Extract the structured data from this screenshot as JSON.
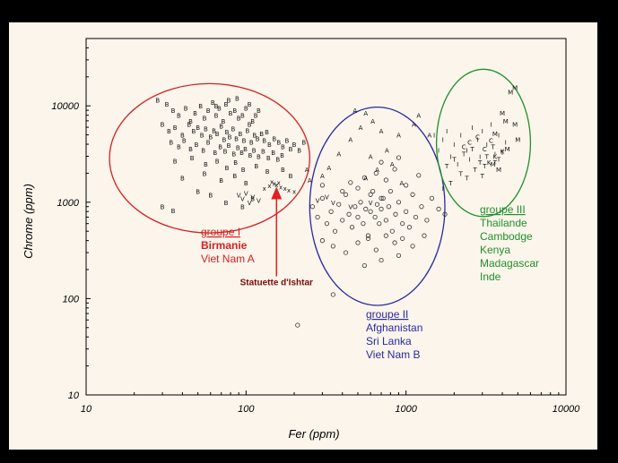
{
  "chart_data": {
    "type": "scatter",
    "xlabel": "Fer (ppm)",
    "ylabel": "Chrome (ppm)",
    "x_scale": "log",
    "y_scale": "log",
    "xlim": [
      10,
      10000
    ],
    "ylim": [
      10,
      50000
    ],
    "x_ticks": [
      "10",
      "100",
      "1000",
      "10000"
    ],
    "y_ticks": [
      "10",
      "100",
      "1000",
      "10000"
    ],
    "grid": false,
    "groups": [
      {
        "title": "groupe I",
        "members": [
          "Birmanie",
          "Viet Nam A"
        ],
        "color": "#d42020",
        "marker": "B",
        "ellipse": {
          "x_center": 52,
          "y_center": 2700,
          "x_min": 14,
          "x_max": 250,
          "y_min": 480,
          "y_max": 17000
        }
      },
      {
        "title": "groupe II",
        "members": [
          "Afghanistan",
          "Sri Lanka",
          "Viet Nam B"
        ],
        "color": "#2a2aa0",
        "marker": "o",
        "ellipse": {
          "x_center": 640,
          "y_center": 700,
          "x_min": 250,
          "x_max": 1750,
          "y_min": 85,
          "y_max": 9700
        }
      },
      {
        "title": "groupe III",
        "members": [
          "Thailande",
          "Cambodge",
          "Kenya",
          "Madagascar",
          "Inde"
        ],
        "color": "#20902a",
        "marker": "T",
        "ellipse": {
          "x_center": 3000,
          "y_center": 3300,
          "x_min": 1550,
          "x_max": 6000,
          "y_min": 710,
          "y_max": 24000
        }
      }
    ],
    "annotation": {
      "text": "Statuette d'Ishtar",
      "color": "#7a0a0a",
      "arrow_to": {
        "x": 155,
        "y": 1450
      },
      "arrow_from": {
        "x": 155,
        "y": 170
      }
    },
    "series": [
      {
        "marker": "B",
        "points": [
          [
            28,
            11500
          ],
          [
            32,
            10500
          ],
          [
            35,
            9000
          ],
          [
            38,
            8000
          ],
          [
            42,
            9500
          ],
          [
            45,
            7000
          ],
          [
            48,
            8500
          ],
          [
            52,
            10000
          ],
          [
            55,
            7500
          ],
          [
            58,
            9000
          ],
          [
            62,
            11000
          ],
          [
            65,
            8000
          ],
          [
            68,
            9500
          ],
          [
            72,
            7000
          ],
          [
            75,
            10500
          ],
          [
            80,
            8500
          ],
          [
            85,
            9000
          ],
          [
            90,
            7500
          ],
          [
            95,
            8000
          ],
          [
            100,
            9500
          ],
          [
            105,
            6500
          ],
          [
            110,
            7000
          ],
          [
            115,
            8000
          ],
          [
            120,
            9000
          ],
          [
            30,
            6500
          ],
          [
            33,
            5500
          ],
          [
            36,
            6000
          ],
          [
            40,
            5000
          ],
          [
            44,
            6500
          ],
          [
            47,
            5500
          ],
          [
            50,
            6000
          ],
          [
            53,
            5000
          ],
          [
            56,
            5800
          ],
          [
            60,
            4800
          ],
          [
            63,
            5600
          ],
          [
            66,
            5200
          ],
          [
            70,
            6200
          ],
          [
            73,
            4500
          ],
          [
            76,
            5400
          ],
          [
            79,
            4800
          ],
          [
            83,
            5800
          ],
          [
            87,
            4600
          ],
          [
            92,
            5200
          ],
          [
            97,
            4400
          ],
          [
            102,
            5600
          ],
          [
            108,
            4200
          ],
          [
            113,
            5000
          ],
          [
            118,
            4600
          ],
          [
            125,
            5200
          ],
          [
            130,
            4400
          ],
          [
            135,
            5400
          ],
          [
            140,
            4000
          ],
          [
            150,
            4600
          ],
          [
            160,
            4200
          ],
          [
            170,
            3800
          ],
          [
            180,
            4400
          ],
          [
            190,
            3600
          ],
          [
            200,
            4000
          ],
          [
            215,
            3500
          ],
          [
            230,
            4200
          ],
          [
            34,
            4200
          ],
          [
            38,
            3800
          ],
          [
            41,
            4400
          ],
          [
            45,
            3600
          ],
          [
            49,
            4000
          ],
          [
            54,
            3500
          ],
          [
            58,
            4200
          ],
          [
            64,
            3300
          ],
          [
            69,
            3800
          ],
          [
            74,
            3400
          ],
          [
            78,
            3900
          ],
          [
            84,
            3200
          ],
          [
            89,
            3700
          ],
          [
            94,
            3300
          ],
          [
            99,
            3600
          ],
          [
            106,
            3100
          ],
          [
            112,
            3500
          ],
          [
            120,
            3000
          ],
          [
            128,
            3400
          ],
          [
            138,
            2900
          ],
          [
            148,
            3300
          ],
          [
            158,
            2800
          ],
          [
            168,
            3100
          ],
          [
            36,
            2700
          ],
          [
            46,
            2900
          ],
          [
            56,
            2500
          ],
          [
            66,
            2700
          ],
          [
            76,
            2300
          ],
          [
            86,
            2600
          ],
          [
            96,
            2200
          ],
          [
            116,
            2400
          ],
          [
            136,
            2100
          ],
          [
            40,
            1800
          ],
          [
            55,
            2000
          ],
          [
            70,
            1700
          ],
          [
            85,
            1900
          ],
          [
            100,
            1600
          ],
          [
            30,
            900
          ],
          [
            35,
            820
          ],
          [
            60,
            1200
          ],
          [
            75,
            1000
          ],
          [
            95,
            900
          ],
          [
            110,
            1100
          ],
          [
            50,
            1300
          ],
          [
            170,
            2200
          ],
          [
            190,
            1900
          ],
          [
            65,
            10000
          ],
          [
            78,
            11500
          ],
          [
            88,
            12000
          ],
          [
            105,
            10500
          ]
        ]
      },
      {
        "marker": "o",
        "points": [
          [
            260,
            900
          ],
          [
            280,
            700
          ],
          [
            300,
            1100
          ],
          [
            320,
            600
          ],
          [
            340,
            800
          ],
          [
            360,
            500
          ],
          [
            380,
            950
          ],
          [
            400,
            650
          ],
          [
            420,
            1200
          ],
          [
            440,
            750
          ],
          [
            460,
            550
          ],
          [
            480,
            900
          ],
          [
            500,
            700
          ],
          [
            520,
            1000
          ],
          [
            540,
            600
          ],
          [
            560,
            850
          ],
          [
            580,
            450
          ],
          [
            600,
            800
          ],
          [
            620,
            1300
          ],
          [
            640,
            700
          ],
          [
            660,
            950
          ],
          [
            680,
            600
          ],
          [
            700,
            850
          ],
          [
            720,
            1100
          ],
          [
            750,
            650
          ],
          [
            780,
            900
          ],
          [
            820,
            500
          ],
          [
            860,
            750
          ],
          [
            900,
            1000
          ],
          [
            950,
            600
          ],
          [
            1000,
            800
          ],
          [
            1050,
            550
          ],
          [
            1100,
            1200
          ],
          [
            1150,
            700
          ],
          [
            1250,
            900
          ],
          [
            1350,
            650
          ],
          [
            1450,
            1100
          ],
          [
            1600,
            850
          ],
          [
            1750,
            750
          ],
          [
            300,
            400
          ],
          [
            350,
            350
          ],
          [
            420,
            300
          ],
          [
            500,
            380
          ],
          [
            580,
            420
          ],
          [
            650,
            320
          ],
          [
            750,
            450
          ],
          [
            850,
            380
          ],
          [
            950,
            420
          ],
          [
            1100,
            350
          ],
          [
            1300,
            450
          ],
          [
            450,
            1600
          ],
          [
            550,
            1800
          ],
          [
            650,
            2000
          ],
          [
            750,
            1700
          ],
          [
            850,
            2200
          ],
          [
            1000,
            1500
          ],
          [
            1200,
            1900
          ],
          [
            700,
            2600
          ],
          [
            900,
            2900
          ],
          [
            550,
            220
          ],
          [
            700,
            250
          ],
          [
            900,
            280
          ],
          [
            350,
            110
          ],
          [
            210,
            53
          ],
          [
            400,
            1300
          ],
          [
            500,
            1400
          ],
          [
            600,
            1200
          ],
          [
            700,
            1100
          ],
          [
            800,
            1300
          ],
          [
            300,
            1500
          ]
        ]
      },
      {
        "marker": "A",
        "points": [
          [
            480,
            9000
          ],
          [
            560,
            8500
          ],
          [
            620,
            7000
          ],
          [
            700,
            5500
          ],
          [
            900,
            5000
          ],
          [
            450,
            4500
          ],
          [
            520,
            6000
          ],
          [
            760,
            3500
          ],
          [
            600,
            3000
          ],
          [
            820,
            2500
          ],
          [
            660,
            2200
          ],
          [
            560,
            1800
          ],
          [
            940,
            1600
          ],
          [
            1120,
            6500
          ],
          [
            1200,
            8000
          ],
          [
            1400,
            5000
          ],
          [
            240,
            2200
          ],
          [
            330,
            2300
          ],
          [
            380,
            3200
          ],
          [
            250,
            1700
          ],
          [
            300,
            1900
          ]
        ]
      },
      {
        "marker": "x",
        "points": [
          [
            140,
            1500
          ],
          [
            145,
            1650
          ],
          [
            150,
            1580
          ],
          [
            155,
            1520
          ],
          [
            160,
            1620
          ],
          [
            165,
            1450
          ],
          [
            175,
            1400
          ],
          [
            185,
            1350
          ],
          [
            200,
            1300
          ],
          [
            130,
            1400
          ]
        ]
      },
      {
        "marker": "V",
        "points": [
          [
            90,
            1200
          ],
          [
            95,
            1100
          ],
          [
            100,
            1250
          ],
          [
            105,
            1000
          ],
          [
            110,
            1150
          ],
          [
            120,
            1050
          ],
          [
            280,
            1050
          ],
          [
            320,
            1150
          ],
          [
            350,
            1000
          ],
          [
            450,
            900
          ],
          [
            600,
            1000
          ]
        ]
      },
      {
        "marker": "I",
        "points": [
          [
            1600,
            3500
          ],
          [
            1700,
            4500
          ],
          [
            1800,
            5500
          ],
          [
            1900,
            3000
          ],
          [
            2000,
            4000
          ],
          [
            2200,
            5000
          ],
          [
            2400,
            3500
          ],
          [
            2600,
            6000
          ],
          [
            2800,
            4500
          ],
          [
            3000,
            5500
          ],
          [
            3200,
            4000
          ],
          [
            3400,
            6500
          ],
          [
            3600,
            3200
          ],
          [
            3800,
            5000
          ],
          [
            2100,
            2500
          ],
          [
            2500,
            2800
          ],
          [
            2900,
            3000
          ],
          [
            1500,
            5000
          ],
          [
            1700,
            1400
          ],
          [
            4200,
            4200
          ]
        ]
      },
      {
        "marker": "T",
        "points": [
          [
            1800,
            2400
          ],
          [
            2000,
            2800
          ],
          [
            2300,
            3200
          ],
          [
            2600,
            3600
          ],
          [
            2900,
            2600
          ],
          [
            3200,
            3000
          ],
          [
            3500,
            3800
          ],
          [
            3800,
            2800
          ],
          [
            2200,
            2000
          ],
          [
            2700,
            2200
          ],
          [
            3100,
            2400
          ],
          [
            3600,
            2600
          ],
          [
            2400,
            1800
          ],
          [
            3000,
            1900
          ],
          [
            1900,
            1600
          ],
          [
            4000,
            3300
          ]
        ]
      },
      {
        "marker": "C",
        "points": [
          [
            2500,
            4200
          ],
          [
            2800,
            4800
          ],
          [
            3100,
            3600
          ],
          [
            2300,
            3800
          ],
          [
            3400,
            4400
          ]
        ]
      },
      {
        "marker": "K",
        "points": [
          [
            3600,
            3000
          ],
          [
            4000,
            3400
          ],
          [
            3300,
            2600
          ]
        ]
      },
      {
        "marker": "M",
        "points": [
          [
            4500,
            14000
          ],
          [
            4800,
            15500
          ],
          [
            4000,
            8500
          ],
          [
            4200,
            7000
          ],
          [
            4800,
            6500
          ],
          [
            5000,
            4500
          ],
          [
            3500,
            2500
          ],
          [
            3800,
            2200
          ],
          [
            3600,
            5200
          ],
          [
            4300,
            3600
          ]
        ]
      }
    ]
  }
}
